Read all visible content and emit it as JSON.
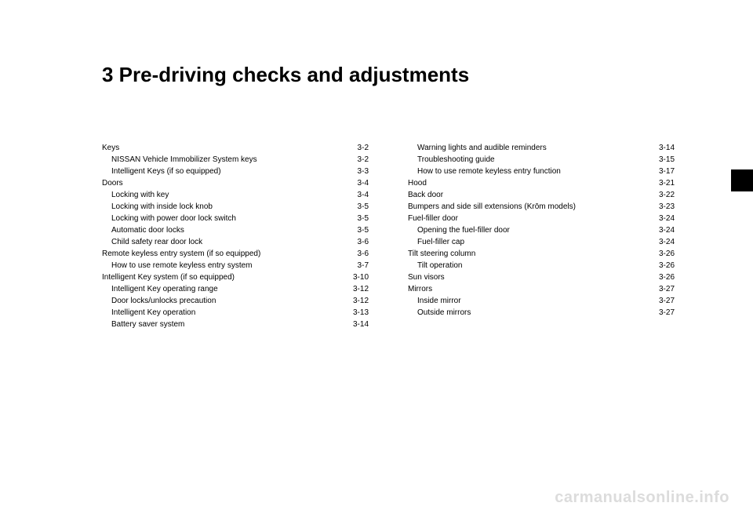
{
  "chapter_title": "3 Pre-driving checks and adjustments",
  "watermark": "carmanualsonline.info",
  "toc": {
    "left": [
      {
        "label": "Keys",
        "page": "3-2",
        "indent": false
      },
      {
        "label": "NISSAN Vehicle Immobilizer System keys",
        "page": "3-2",
        "indent": true
      },
      {
        "label": "Intelligent Keys (if so equipped)",
        "page": "3-3",
        "indent": true
      },
      {
        "label": "Doors",
        "page": "3-4",
        "indent": false
      },
      {
        "label": "Locking with key",
        "page": "3-4",
        "indent": true
      },
      {
        "label": "Locking with inside lock knob",
        "page": "3-5",
        "indent": true
      },
      {
        "label": "Locking with power door lock switch",
        "page": "3-5",
        "indent": true
      },
      {
        "label": "Automatic door locks",
        "page": "3-5",
        "indent": true
      },
      {
        "label": "Child safety rear door lock",
        "page": "3-6",
        "indent": true
      },
      {
        "label": "Remote keyless entry system (if so equipped)",
        "page": "3-6",
        "indent": false
      },
      {
        "label": "How to use remote keyless entry system",
        "page": "3-7",
        "indent": true
      },
      {
        "label": "Intelligent Key system (if so equipped)",
        "page": "3-10",
        "indent": false
      },
      {
        "label": "Intelligent Key operating range",
        "page": "3-12",
        "indent": true
      },
      {
        "label": "Door locks/unlocks precaution",
        "page": "3-12",
        "indent": true
      },
      {
        "label": "Intelligent Key operation",
        "page": "3-13",
        "indent": true
      },
      {
        "label": "Battery saver system",
        "page": "3-14",
        "indent": true
      }
    ],
    "right": [
      {
        "label": "Warning lights and audible reminders",
        "page": "3-14",
        "indent": true
      },
      {
        "label": "Troubleshooting guide",
        "page": "3-15",
        "indent": true
      },
      {
        "label": "How to use remote keyless entry function",
        "page": "3-17",
        "indent": true
      },
      {
        "label": "Hood",
        "page": "3-21",
        "indent": false
      },
      {
        "label": "Back door",
        "page": "3-22",
        "indent": false
      },
      {
        "label": "Bumpers and side sill extensions (Krōm models)",
        "page": "3-23",
        "indent": false
      },
      {
        "label": "Fuel-filler door",
        "page": "3-24",
        "indent": false
      },
      {
        "label": "Opening the fuel-filler door",
        "page": "3-24",
        "indent": true
      },
      {
        "label": "Fuel-filler cap",
        "page": "3-24",
        "indent": true
      },
      {
        "label": "Tilt steering column",
        "page": "3-26",
        "indent": false
      },
      {
        "label": "Tilt operation",
        "page": "3-26",
        "indent": true
      },
      {
        "label": "Sun visors",
        "page": "3-26",
        "indent": false
      },
      {
        "label": "Mirrors",
        "page": "3-27",
        "indent": false
      },
      {
        "label": "Inside mirror",
        "page": "3-27",
        "indent": true
      },
      {
        "label": "Outside mirrors",
        "page": "3-27",
        "indent": true
      }
    ]
  }
}
